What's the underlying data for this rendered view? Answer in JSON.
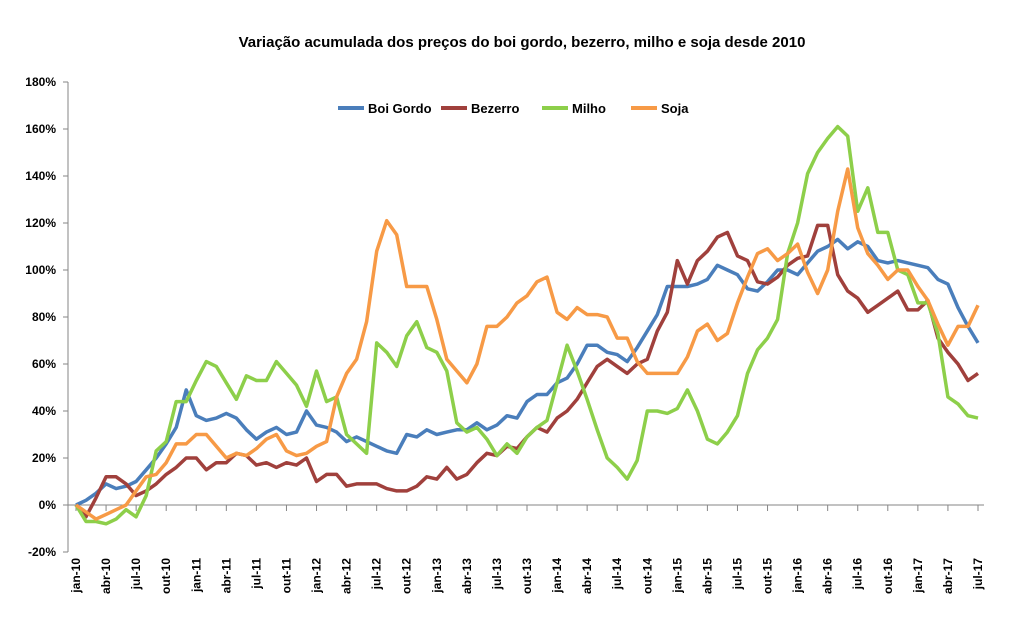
{
  "chart_data": {
    "type": "line",
    "title": "Variação acumulada dos preços do boi gordo, bezerro, milho e soja desde 2010",
    "xlabel": "",
    "ylabel": "",
    "ylim": [
      -20,
      180
    ],
    "y_ticks": [
      "-20%",
      "0%",
      "20%",
      "40%",
      "60%",
      "80%",
      "100%",
      "120%",
      "140%",
      "160%",
      "180%"
    ],
    "y_tick_values": [
      -20,
      0,
      20,
      40,
      60,
      80,
      100,
      120,
      140,
      160,
      180
    ],
    "x_tick_labels": [
      "jan-10",
      "abr-10",
      "jul-10",
      "out-10",
      "jan-11",
      "abr-11",
      "jul-11",
      "out-11",
      "jan-12",
      "abr-12",
      "jul-12",
      "out-12",
      "jan-13",
      "abr-13",
      "jul-13",
      "out-13",
      "jan-14",
      "abr-14",
      "jul-14",
      "out-14",
      "jan-15",
      "abr-15",
      "jul-15",
      "out-15",
      "jan-16",
      "abr-16",
      "jul-16",
      "out-16",
      "jan-17",
      "abr-17",
      "jul-17"
    ],
    "x_range": [
      "jan-10",
      "jul-17"
    ],
    "frequency": "monthly",
    "grid": false,
    "legend_position": "top",
    "series": [
      {
        "name": "Boi Gordo",
        "color": "#4a7ebb",
        "values": [
          0,
          2,
          5,
          9,
          7,
          8,
          10,
          15,
          20,
          26,
          33,
          49,
          38,
          36,
          37,
          39,
          37,
          32,
          28,
          31,
          33,
          30,
          31,
          40,
          34,
          33,
          31,
          27,
          29,
          27,
          25,
          23,
          22,
          30,
          29,
          32,
          30,
          31,
          32,
          32,
          35,
          32,
          34,
          38,
          37,
          44,
          47,
          47,
          52,
          54,
          60,
          68,
          68,
          65,
          64,
          61,
          67,
          74,
          81,
          93,
          93,
          93,
          94,
          96,
          102,
          100,
          98,
          92,
          91,
          95,
          100,
          100,
          98,
          103,
          108,
          110,
          113,
          109,
          112,
          110,
          104,
          103,
          104,
          103,
          102,
          101,
          96,
          94,
          84,
          76,
          69
        ]
      },
      {
        "name": "Bezerro",
        "color": "#a0403c",
        "values": [
          0,
          -5,
          3,
          12,
          12,
          9,
          4,
          6,
          9,
          13,
          16,
          20,
          20,
          15,
          18,
          18,
          22,
          21,
          17,
          18,
          16,
          18,
          17,
          20,
          10,
          13,
          13,
          8,
          9,
          9,
          9,
          7,
          6,
          6,
          8,
          12,
          11,
          16,
          11,
          13,
          18,
          22,
          21,
          25,
          24,
          29,
          33,
          31,
          37,
          40,
          45,
          52,
          59,
          62,
          59,
          56,
          60,
          62,
          74,
          82,
          104,
          94,
          104,
          108,
          114,
          116,
          106,
          104,
          95,
          94,
          97,
          102,
          105,
          106,
          119,
          119,
          98,
          91,
          88,
          82,
          85,
          88,
          91,
          83,
          83,
          87,
          71,
          65,
          60,
          53,
          56
        ]
      },
      {
        "name": "Milho",
        "color": "#8dcf4a",
        "values": [
          0,
          -7,
          -7,
          -8,
          -6,
          -2,
          -5,
          4,
          23,
          27,
          44,
          44,
          53,
          61,
          59,
          52,
          45,
          55,
          53,
          53,
          61,
          56,
          51,
          42,
          57,
          44,
          46,
          30,
          26,
          22,
          69,
          65,
          59,
          72,
          78,
          67,
          65,
          57,
          35,
          31,
          33,
          28,
          21,
          26,
          22,
          29,
          33,
          36,
          52,
          68,
          57,
          45,
          32,
          20,
          16,
          11,
          19,
          40,
          40,
          39,
          41,
          49,
          40,
          28,
          26,
          31,
          38,
          56,
          66,
          71,
          79,
          107,
          120,
          141,
          150,
          156,
          161,
          157,
          125,
          135,
          116,
          116,
          100,
          98,
          86,
          86,
          73,
          46,
          43,
          38,
          37
        ]
      },
      {
        "name": "Soja",
        "color": "#f79a46",
        "values": [
          0,
          -3,
          -6,
          -4,
          -2,
          0,
          6,
          12,
          13,
          18,
          26,
          26,
          30,
          30,
          25,
          20,
          22,
          21,
          24,
          28,
          30,
          23,
          21,
          22,
          25,
          27,
          46,
          56,
          62,
          78,
          108,
          121,
          115,
          93,
          93,
          93,
          79,
          62,
          57,
          52,
          60,
          76,
          76,
          80,
          86,
          89,
          95,
          97,
          82,
          79,
          84,
          81,
          81,
          80,
          71,
          71,
          61,
          56,
          56,
          56,
          56,
          63,
          74,
          77,
          70,
          73,
          86,
          97,
          107,
          109,
          104,
          107,
          111,
          99,
          90,
          100,
          125,
          143,
          118,
          107,
          102,
          96,
          100,
          100,
          93,
          87,
          77,
          68,
          76,
          76,
          85
        ]
      }
    ]
  }
}
